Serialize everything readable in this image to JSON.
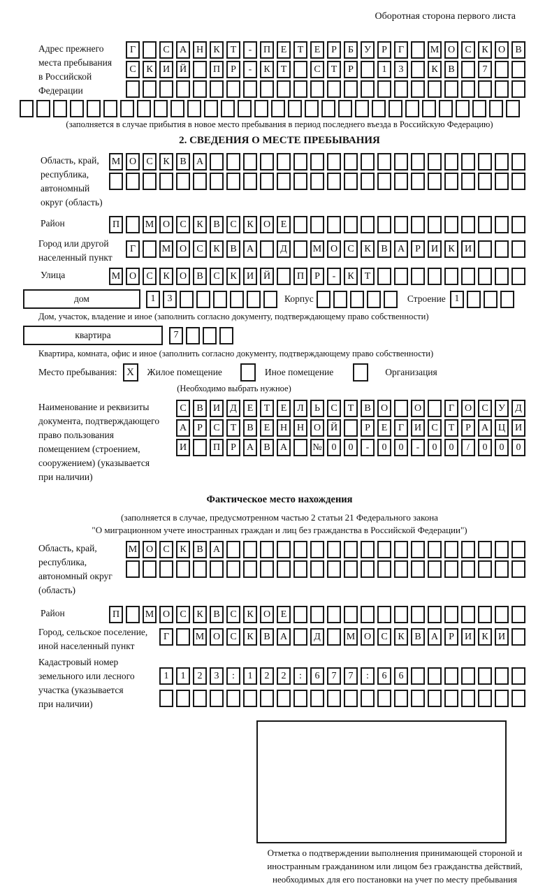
{
  "page": {
    "back_note": "Оборотная сторона первого листа"
  },
  "prev_address": {
    "label": "Адрес прежнего\nместа пребывания\nв Российской\nФедерации",
    "note": "(заполняется в случае прибытия в новое место пребывания в период последнего въезда в Российскую Федерацию)"
  },
  "section2": {
    "title": "2. СВЕДЕНИЯ О МЕСТЕ ПРЕБЫВАНИЯ",
    "region_label": "Область, край,\nреспублика,\nавтономный\nокруг (область)",
    "district_label": "Район",
    "city_label": "Город или другой\nнаселенный пункт",
    "street_label": "Улица",
    "house_label": "дом",
    "korpus_label": "Корпус",
    "stroenie_label": "Строение",
    "house_caption": "Дом, участок, владение и иное (заполнить согласно документу, подтверждающему право собственности)",
    "flat_label": "квартира",
    "flat_caption": "Квартира, комната, офис и иное (заполнить согласно документу, подтверждающему право собственности)"
  },
  "place_type": {
    "label": "Место пребывания:",
    "mark": "X",
    "options": [
      {
        "label": "Жилое помещение",
        "checked": true
      },
      {
        "label": "Иное помещение",
        "checked": false
      },
      {
        "label": "Организация",
        "checked": false
      }
    ],
    "note": "(Необходимо выбрать нужное)"
  },
  "document_block": {
    "label": "Наименование и реквизиты\nдокумента, подтверждающего\nправо пользования\nпомещением (строением,\nсооружением) (указывается\nпри наличии)"
  },
  "actual_location": {
    "title": "Фактическое место нахождения",
    "note_line1": "(заполняется в случае, предусмотренном частью 2 статьи 21 Федерального закона",
    "note_line2": "\"О миграционном учете иностранных граждан и лиц без гражданства в Российской Федерации\")",
    "region_label": "Область, край,\nреспублика,\nавтономный округ\n(область)",
    "district_label": "Район",
    "city_label": "Город, сельское поселение,\nиной населенный пункт",
    "cadastre_label": "Кадастровый номер\nземельного или лесного\nучастка (указывается\nпри наличии)"
  },
  "stamp": {
    "caption": "Отметка о подтверждении выполнения принимающей стороной и иностранным гражданином или лицом без гражданства действий, необходимых для его постановки на учет по месту пребывания"
  },
  "grids": {
    "prev1": {
      "len": 24,
      "value": "Г САНКТ-ПЕТЕРБУРГ МОСКОВ"
    },
    "prev2": {
      "len": 24,
      "value": "СКИЙ ПР-КТ СТР 13 КВ 7"
    },
    "prev3": {
      "len": 24,
      "value": ""
    },
    "prev4": {
      "len": 30,
      "value": ""
    },
    "s2_region1": {
      "len": 25,
      "value": "МОСКВА"
    },
    "s2_region2": {
      "len": 25,
      "value": ""
    },
    "s2_district": {
      "len": 25,
      "value": "П МОСКВСКОЕ"
    },
    "s2_city": {
      "len": 24,
      "value": "Г МОСКВА Д МОСКВАРИКИ"
    },
    "s2_street": {
      "len": 25,
      "value": "МОСКОВСКИЙ ПР-КТ"
    },
    "s2_house": {
      "len": 8,
      "value": "13"
    },
    "s2_korpus": {
      "len": 5,
      "value": ""
    },
    "s2_stroenie": {
      "len": 4,
      "value": "1"
    },
    "s2_flat": {
      "len": 4,
      "value": "7"
    },
    "doc1": {
      "len": 21,
      "value": "СВИДЕТЕЛЬСТВО О ГОСУД"
    },
    "doc2": {
      "len": 21,
      "value": "АРСТВЕННОЙ РЕГИСТРАЦИ"
    },
    "doc3": {
      "len": 21,
      "value": "И ПРАВА №00-00-00/000"
    },
    "f_region1": {
      "len": 24,
      "value": "МОСКВА"
    },
    "f_region2": {
      "len": 24,
      "value": ""
    },
    "f_district": {
      "len": 25,
      "value": "П МОСКВСКОЕ"
    },
    "f_city": {
      "len": 22,
      "value": "Г МОСКВА Д МОСКВАРИКИ"
    },
    "f_cad1": {
      "len": 22,
      "value": "1123:122:677:66"
    },
    "f_cad2": {
      "len": 22,
      "value": ""
    }
  }
}
